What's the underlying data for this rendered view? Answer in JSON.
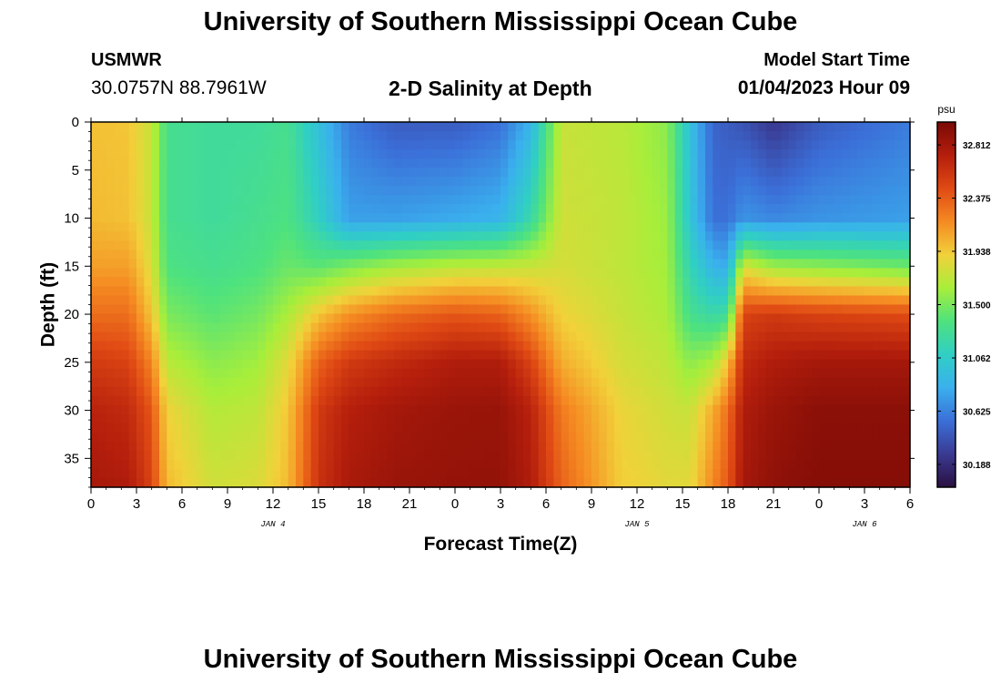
{
  "header": {
    "title": "University of Southern Mississippi Ocean Cube",
    "station": "USMWR",
    "coords": "30.0757N  88.7961W",
    "subtitle": "2-D Salinity at Depth",
    "model_start_label": "Model Start Time",
    "model_start_value": "01/04/2023 Hour 09"
  },
  "footer": {
    "title": "University of Southern Mississippi Ocean Cube"
  },
  "chart_data": {
    "type": "heatmap",
    "title": "2-D Salinity at Depth",
    "xlabel": "Forecast Time(Z)",
    "ylabel": "Depth (ft)",
    "x_tick_labels": [
      "0",
      "3",
      "6",
      "9",
      "12",
      "15",
      "18",
      "21",
      "0",
      "3",
      "6",
      "9",
      "12",
      "15",
      "18",
      "21",
      "0",
      "3",
      "6"
    ],
    "x_hours": [
      0,
      54
    ],
    "day_labels": [
      {
        "text": "JAN 4",
        "hour": 12
      },
      {
        "text": "JAN 5",
        "hour": 36
      },
      {
        "text": "JAN 6",
        "hour": 51
      }
    ],
    "ylim": [
      0,
      38
    ],
    "y_inverted": true,
    "y_ticks": [
      0,
      5,
      10,
      15,
      20,
      25,
      30,
      35
    ],
    "colorbar": {
      "unit": "psu",
      "min": 30.0,
      "max": 33.0,
      "tick_values": [
        30.188,
        30.625,
        31.062,
        31.5,
        31.938,
        32.375,
        32.812
      ],
      "tick_labels": [
        "30.188",
        "30.625",
        "31.062",
        "31.500",
        "31.938",
        "32.375",
        "32.812"
      ],
      "colors": [
        "#2a1040",
        "#3a3a92",
        "#3b6fd8",
        "#3ab0ee",
        "#30cfc4",
        "#4ee27e",
        "#a8ee3a",
        "#f2d13a",
        "#f58a22",
        "#e04a14",
        "#b41e0c",
        "#7a0a06"
      ]
    },
    "salinity_profiles": [
      {
        "hour": 0,
        "depth": [
          0,
          10,
          15,
          20,
          25,
          30,
          38
        ],
        "psu": [
          31.97,
          32.0,
          32.1,
          32.3,
          32.55,
          32.7,
          32.8
        ]
      },
      {
        "hour": 2.5,
        "depth": [
          0,
          10,
          15,
          20,
          25,
          30,
          38
        ],
        "psu": [
          31.95,
          31.97,
          32.1,
          32.3,
          32.5,
          32.65,
          32.75
        ]
      },
      {
        "hour": 4,
        "depth": [
          0,
          10,
          15,
          20,
          25,
          30,
          38
        ],
        "psu": [
          31.75,
          31.75,
          31.82,
          31.95,
          32.2,
          32.4,
          32.5
        ]
      },
      {
        "hour": 5,
        "depth": [
          0,
          10,
          15,
          20,
          25,
          30,
          38
        ],
        "psu": [
          31.3,
          31.3,
          31.35,
          31.5,
          31.7,
          31.9,
          32.0
        ]
      },
      {
        "hour": 8,
        "depth": [
          0,
          10,
          15,
          20,
          25,
          30,
          38
        ],
        "psu": [
          31.25,
          31.25,
          31.3,
          31.4,
          31.55,
          31.68,
          31.78
        ]
      },
      {
        "hour": 11,
        "depth": [
          0,
          10,
          15,
          20,
          25,
          30,
          38
        ],
        "psu": [
          31.25,
          31.3,
          31.35,
          31.48,
          31.62,
          31.72,
          31.82
        ]
      },
      {
        "hour": 13,
        "depth": [
          0,
          10,
          15,
          20,
          25,
          30,
          38
        ],
        "psu": [
          31.3,
          31.35,
          31.45,
          31.65,
          31.85,
          31.95,
          32.0
        ]
      },
      {
        "hour": 15,
        "depth": [
          0,
          10,
          15,
          20,
          25,
          30,
          38
        ],
        "psu": [
          30.95,
          31.1,
          31.4,
          31.95,
          32.35,
          32.55,
          32.6
        ]
      },
      {
        "hour": 17,
        "depth": [
          0,
          10,
          15,
          20,
          25,
          30,
          38
        ],
        "psu": [
          30.6,
          30.75,
          31.5,
          32.15,
          32.55,
          32.72,
          32.78
        ]
      },
      {
        "hour": 20,
        "depth": [
          0,
          10,
          15,
          20,
          25,
          30,
          38
        ],
        "psu": [
          30.45,
          30.75,
          31.62,
          32.3,
          32.65,
          32.8,
          32.85
        ]
      },
      {
        "hour": 24,
        "depth": [
          0,
          10,
          15,
          20,
          25,
          30,
          38
        ],
        "psu": [
          30.45,
          30.8,
          31.7,
          32.4,
          32.75,
          32.85,
          32.88
        ]
      },
      {
        "hour": 27,
        "depth": [
          0,
          10,
          15,
          20,
          25,
          30,
          38
        ],
        "psu": [
          30.55,
          30.85,
          31.72,
          32.35,
          32.75,
          32.86,
          32.88
        ]
      },
      {
        "hour": 29,
        "depth": [
          0,
          10,
          15,
          20,
          25,
          30,
          38
        ],
        "psu": [
          30.85,
          31.2,
          31.75,
          32.15,
          32.5,
          32.7,
          32.75
        ]
      },
      {
        "hour": 31,
        "depth": [
          0,
          10,
          15,
          20,
          25,
          30,
          38
        ],
        "psu": [
          31.75,
          31.78,
          31.8,
          31.9,
          32.05,
          32.25,
          32.35
        ]
      },
      {
        "hour": 35,
        "depth": [
          0,
          10,
          15,
          20,
          25,
          30,
          38
        ],
        "psu": [
          31.7,
          31.72,
          31.72,
          31.75,
          31.8,
          31.88,
          31.92
        ]
      },
      {
        "hour": 38,
        "depth": [
          0,
          10,
          15,
          20,
          25,
          30,
          38
        ],
        "psu": [
          31.55,
          31.6,
          31.62,
          31.65,
          31.72,
          31.78,
          31.85
        ]
      },
      {
        "hour": 39.5,
        "depth": [
          0,
          10,
          15,
          20,
          25,
          30,
          38
        ],
        "psu": [
          30.95,
          31.0,
          31.15,
          31.3,
          31.55,
          31.75,
          31.85
        ]
      },
      {
        "hour": 41,
        "depth": [
          0,
          10,
          15,
          20,
          25,
          30,
          38
        ],
        "psu": [
          30.5,
          30.55,
          30.85,
          31.2,
          31.65,
          32.05,
          32.2
        ]
      },
      {
        "hour": 42,
        "depth": [
          0,
          10,
          15,
          20,
          25,
          30,
          38
        ],
        "psu": [
          30.45,
          30.55,
          30.8,
          31.25,
          31.95,
          32.3,
          32.4
        ]
      },
      {
        "hour": 43,
        "depth": [
          0,
          10,
          15,
          20,
          25,
          30,
          38
        ],
        "psu": [
          30.4,
          30.7,
          31.8,
          32.5,
          32.65,
          32.75,
          32.8
        ]
      },
      {
        "hour": 45,
        "depth": [
          0,
          10,
          15,
          20,
          25,
          30,
          38
        ],
        "psu": [
          30.25,
          30.65,
          31.6,
          32.55,
          32.75,
          32.85,
          32.9
        ]
      },
      {
        "hour": 48,
        "depth": [
          0,
          10,
          15,
          20,
          25,
          30,
          38
        ],
        "psu": [
          30.45,
          30.7,
          31.55,
          32.5,
          32.8,
          32.92,
          32.95
        ]
      },
      {
        "hour": 54,
        "depth": [
          0,
          10,
          15,
          20,
          25,
          30,
          38
        ],
        "psu": [
          30.6,
          30.75,
          31.45,
          32.45,
          32.8,
          32.92,
          32.95
        ]
      }
    ]
  }
}
